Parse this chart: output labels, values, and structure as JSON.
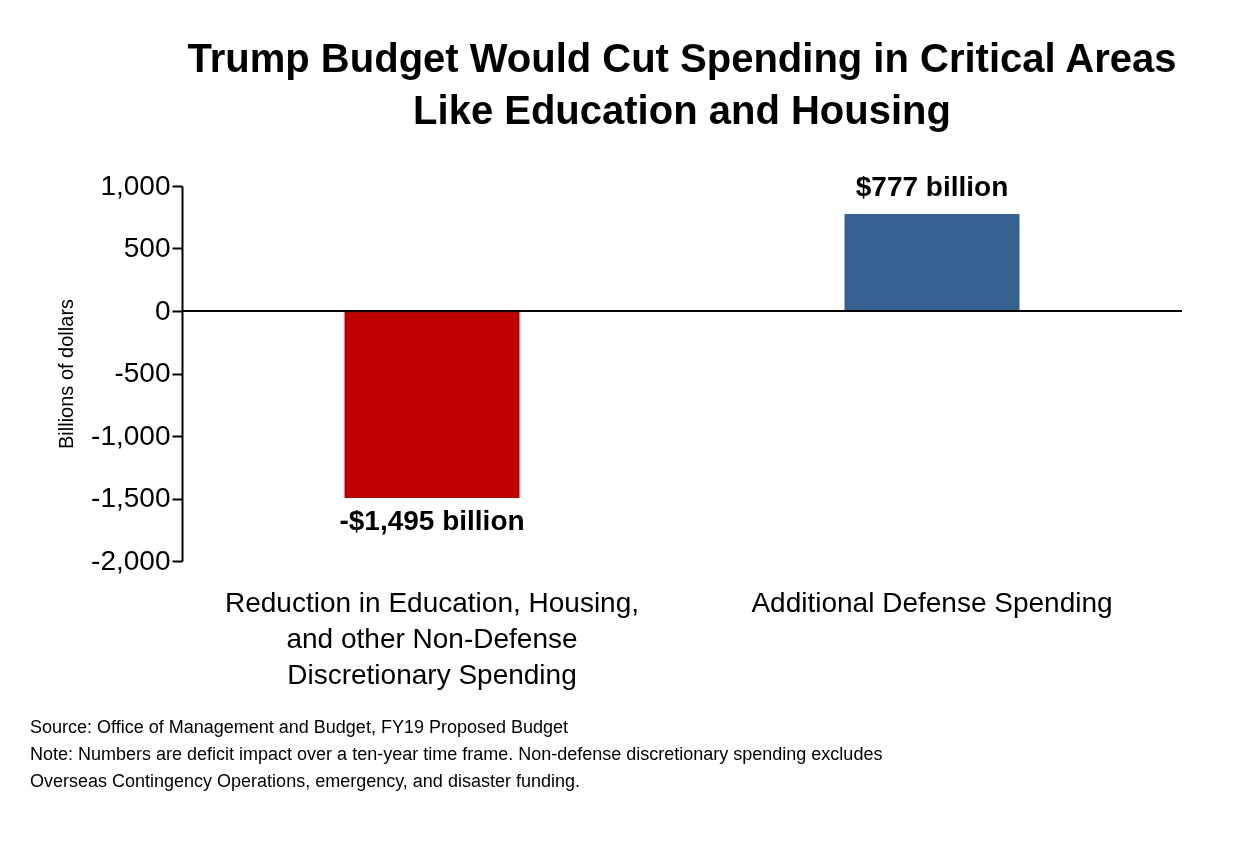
{
  "chart_data": {
    "type": "bar",
    "title": "Trump Budget Would Cut Spending in Critical Areas Like Education and Housing",
    "ylabel": "Billions of dollars",
    "categories": [
      "Reduction in Education, Housing, and other Non-Defense Discretionary Spending",
      "Additional Defense Spending"
    ],
    "values": [
      -1495,
      777
    ],
    "colors": [
      "#c00000",
      "#376092"
    ],
    "value_labels": [
      "-$1,495 billion",
      "$777 billion"
    ],
    "ylim": [
      -2000,
      1000
    ],
    "yticks": [
      {
        "value": -2000,
        "label": "-2,000"
      },
      {
        "value": -1500,
        "label": "-1,500"
      },
      {
        "value": -1000,
        "label": "-1,000"
      },
      -500,
      0,
      500,
      {
        "value": 1000,
        "label": "1,000"
      }
    ],
    "grid": false,
    "ref_lines": [
      {
        "axis": "y",
        "value": 0,
        "color": "#000000",
        "line_style": "solid"
      }
    ],
    "annotations": [
      "Source: Office of Management and Budget, FY19 Proposed Budget",
      "Note: Numbers are deficit impact over a ten-year time frame. Non-defense discretionary spending excludes Overseas Contingency Operations, emergency, and disaster funding."
    ]
  }
}
